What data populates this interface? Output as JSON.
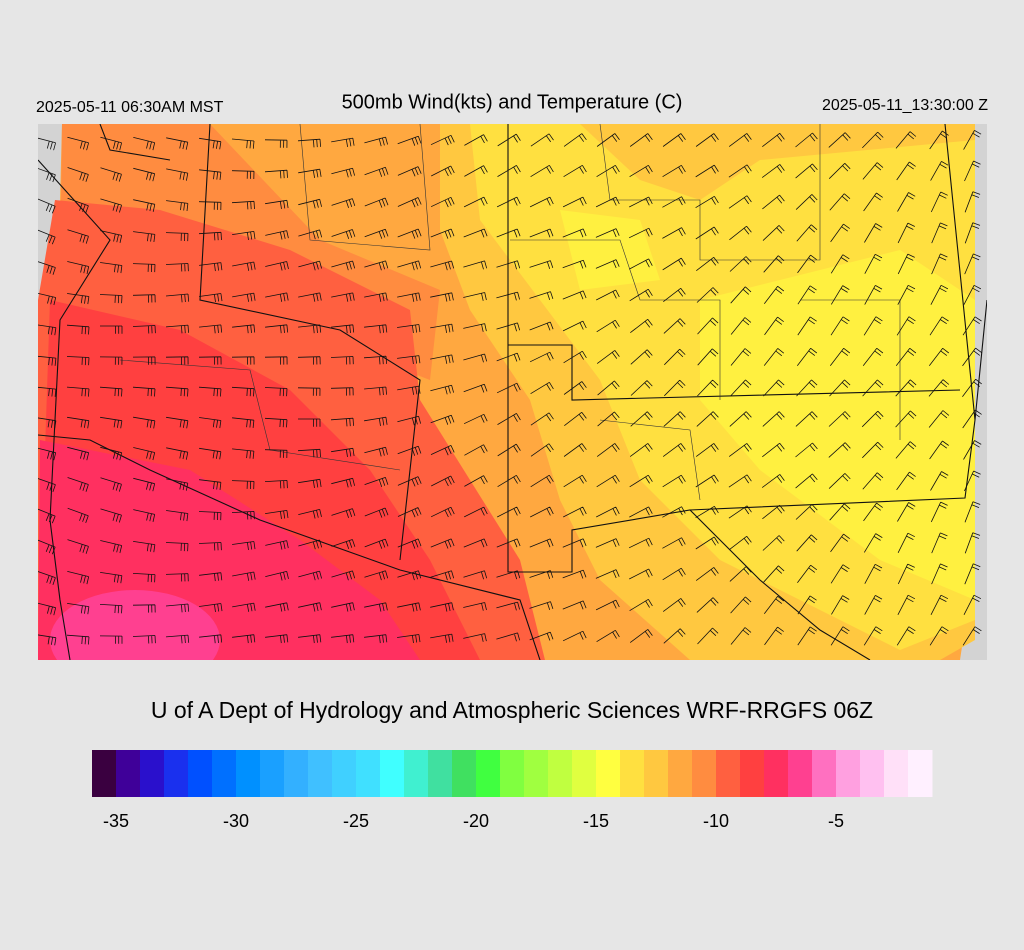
{
  "header": {
    "left": "2025-05-11 06:30AM MST",
    "title": "500mb Wind(kts) and Temperature (C)",
    "right": "2025-05-11_13:30:00 Z"
  },
  "footer": {
    "credit": "U of A Dept of Hydrology and Atmospheric Sciences WRF-RRGFS 06Z"
  },
  "colorbar": {
    "range": [
      -36,
      -1
    ],
    "ticks": [
      -35,
      -30,
      -25,
      -20,
      -15,
      -10,
      -5
    ],
    "colors": [
      "#3a0040",
      "#3f0099",
      "#2a10cc",
      "#1a30ee",
      "#0050ff",
      "#0070ff",
      "#0090ff",
      "#1aa0ff",
      "#33b0ff",
      "#40c0ff",
      "#40d0ff",
      "#40e0ff",
      "#40ffff",
      "#40f0d0",
      "#40e0a0",
      "#40e060",
      "#40ff40",
      "#80ff40",
      "#a0ff40",
      "#c0ff40",
      "#e0ff40",
      "#ffff40",
      "#ffe040",
      "#ffc840",
      "#ffa840",
      "#ff8c40",
      "#ff6040",
      "#ff4040",
      "#ff3060",
      "#ff4090",
      "#ff70c0",
      "#ffa0e0",
      "#ffc0f0",
      "#ffe0f8",
      "#fff0ff"
    ]
  }
}
